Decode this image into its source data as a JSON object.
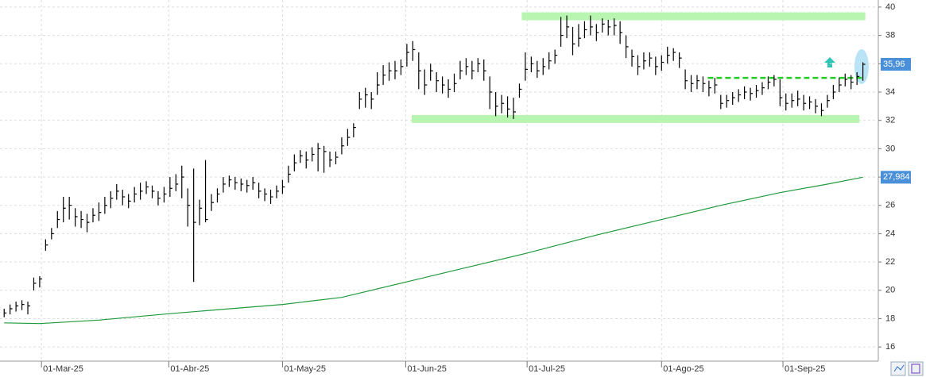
{
  "chart_data": {
    "type": "ohlc",
    "xlim": [
      -0.7,
      147.6
    ],
    "xticks": [
      {
        "value": 6.3,
        "label": "01-Mar-25"
      },
      {
        "value": 27.8,
        "label": "01-Abr-25"
      },
      {
        "value": 47,
        "label": "01-May-25"
      },
      {
        "value": 67.8,
        "label": "01-Jun-25"
      },
      {
        "value": 88.3,
        "label": "01-Jul-25"
      },
      {
        "value": 111,
        "label": "01-Ago-25"
      },
      {
        "value": 131.5,
        "label": "01-Sep-25"
      }
    ],
    "ylim": [
      15,
      40.5
    ],
    "yticks": [
      16,
      18,
      20,
      22,
      24,
      26,
      28,
      30,
      32,
      34,
      36,
      38,
      40
    ],
    "grid": true,
    "bars": {
      "color": "#000000",
      "high": [
        18.7,
        19,
        19.2,
        19.3,
        19.2,
        20.9,
        21,
        23.6,
        24.4,
        25.6,
        26.6,
        26.6,
        25.8,
        25.6,
        25.4,
        25.8,
        26.2,
        26.6,
        27,
        27.5,
        27.1,
        26.8,
        27.3,
        27.6,
        27.7,
        27.4,
        27,
        27.3,
        28,
        28.2,
        28.8,
        27.2,
        28.6,
        26.4,
        29.2,
        26.8,
        27.2,
        28,
        28.1,
        28,
        27.9,
        27.8,
        28,
        27.6,
        27.2,
        27.1,
        27.4,
        27.8,
        28.8,
        29.6,
        29.9,
        29.8,
        30.1,
        30.4,
        30.2,
        29.8,
        29.8,
        30.8,
        31.4,
        31.8,
        34,
        34.3,
        34,
        35.4,
        35.9,
        36.1,
        36.2,
        36.3,
        37.4,
        37.6,
        36.8,
        35.6,
        36,
        35.4,
        35.1,
        34.9,
        35.3,
        36.2,
        36.4,
        36.2,
        36.4,
        36.3,
        35.1,
        34,
        33.8,
        33.7,
        33.6,
        34.6,
        36.8,
        36.5,
        36.2,
        36.4,
        36.8,
        37,
        39.3,
        39.4,
        38.6,
        38.8,
        39,
        39.4,
        38.8,
        39.2,
        39.1,
        39.2,
        39,
        38,
        37,
        36.6,
        36.8,
        36.8,
        36.5,
        36.6,
        37.2,
        37.1,
        36.8,
        35.6,
        35.2,
        35.2,
        35.1,
        34.8,
        35,
        33.8,
        33.8,
        34,
        34.2,
        34.4,
        34.3,
        34.5,
        34.7,
        35.1,
        35.2,
        34.9,
        33.9,
        33.9,
        34.1,
        33.8,
        33.7,
        33.5,
        33.2,
        33.8,
        34.5,
        35,
        35.3,
        35.2,
        35.4,
        36.1
      ],
      "low": [
        18.1,
        18.3,
        18.5,
        18.6,
        18.3,
        20,
        20.2,
        22.8,
        23.6,
        24.4,
        24.8,
        25,
        24.5,
        24.4,
        24.1,
        24.8,
        24.9,
        25.4,
        25.8,
        26.4,
        26,
        25.8,
        26.2,
        26.4,
        26.8,
        26.5,
        26,
        26.2,
        26.6,
        27,
        26.5,
        24.5,
        20.6,
        24.6,
        24.8,
        25.6,
        26.2,
        26.9,
        27.3,
        27.1,
        27,
        26.9,
        27.1,
        26.5,
        26.3,
        26.1,
        26.5,
        26.8,
        27.6,
        28.4,
        29,
        28.6,
        29.1,
        28.4,
        28.3,
        28.7,
        28.9,
        29.6,
        30.2,
        30.8,
        32.8,
        32.9,
        32.8,
        33.8,
        34.5,
        34.8,
        34.9,
        35.2,
        35.8,
        36.2,
        34.2,
        33.8,
        34.8,
        34,
        33.9,
        33.6,
        34,
        34.9,
        35.2,
        34.9,
        35.4,
        34.8,
        32.8,
        32.3,
        32.5,
        32.2,
        32.1,
        33.6,
        34.8,
        35.4,
        35,
        35.2,
        35.6,
        36,
        37.2,
        37.8,
        36.6,
        37.2,
        37.8,
        38,
        37.6,
        38.2,
        38,
        38,
        37.4,
        36.4,
        35.8,
        35.2,
        35.6,
        35.8,
        35.2,
        35.5,
        36,
        36.2,
        35.7,
        34.2,
        34,
        34.2,
        34,
        33.7,
        33.9,
        32.8,
        32.9,
        33.1,
        33.3,
        33.5,
        33.4,
        33.6,
        33.8,
        34.2,
        34.4,
        33,
        32.7,
        32.9,
        33,
        32.7,
        32.8,
        32.5,
        32.3,
        32.9,
        33.5,
        34,
        34.4,
        34.2,
        34.5,
        34.8
      ],
      "close": [
        18.4,
        18.7,
        18.9,
        19,
        18.9,
        20.5,
        20.8,
        23.2,
        24,
        25,
        25.8,
        26,
        25.2,
        25,
        24.8,
        25.3,
        25.5,
        26,
        26.5,
        27,
        26.6,
        26.3,
        26.8,
        27,
        27.3,
        27,
        26.5,
        26.8,
        27.2,
        27.5,
        28,
        26,
        24.8,
        25.8,
        25,
        26.2,
        26.8,
        27.5,
        27.8,
        27.6,
        27.5,
        27.4,
        27.6,
        27,
        26.8,
        26.6,
        27,
        27.3,
        28.2,
        29,
        29.5,
        29.2,
        29.6,
        30,
        29.8,
        29.2,
        29.4,
        30.2,
        30.8,
        31.5,
        33.5,
        33.8,
        33.5,
        34.5,
        35.2,
        35.5,
        35.5,
        35.8,
        36.8,
        37,
        35.5,
        34.5,
        35.5,
        34.8,
        34.5,
        34.2,
        34.6,
        35.5,
        35.8,
        35.5,
        36,
        35.5,
        34,
        33,
        33.2,
        32.8,
        32.6,
        34.2,
        35.6,
        36,
        35.5,
        35.8,
        36.2,
        36.6,
        38,
        38.6,
        37.4,
        37.8,
        38.4,
        38.6,
        38.2,
        38.8,
        38.6,
        38.7,
        38.2,
        37.2,
        36.5,
        35.8,
        36.2,
        36.4,
        35.8,
        36.1,
        36.6,
        36.8,
        36.4,
        34.8,
        34.6,
        34.8,
        34.6,
        34.3,
        34.5,
        33.2,
        33.4,
        33.6,
        33.8,
        34,
        33.9,
        34.1,
        34.3,
        34.7,
        34.9,
        33.6,
        33.2,
        33.4,
        33.5,
        33.2,
        33.3,
        33,
        32.7,
        33.4,
        34,
        34.5,
        34.9,
        34.7,
        35.1,
        35.96
      ]
    },
    "lines": [
      {
        "color": "#1f9a3c",
        "x": [
          0,
          6,
          16,
          28,
          47,
          57,
          68,
          78,
          88,
          100,
          111,
          121,
          131,
          139,
          145
        ],
        "values": [
          17.7,
          17.65,
          17.9,
          18.35,
          19.0,
          19.5,
          20.6,
          21.6,
          22.6,
          23.9,
          25.0,
          26.0,
          26.9,
          27.5,
          27.984
        ]
      }
    ],
    "levels": [
      {
        "value": 39.35,
        "from": 87.4,
        "to": 145.4,
        "color": "#b8f5b0",
        "style": "band"
      },
      {
        "value": 32.1,
        "from": 68.8,
        "to": 144.4,
        "color": "#b8f5b0",
        "style": "band"
      },
      {
        "value": 35.0,
        "from": 118.8,
        "to": 145.4,
        "color": "#22cc22",
        "style": "dashed"
      }
    ],
    "price_tags": [
      {
        "value": 35.96,
        "label": "35,96",
        "color": "#4a90d9"
      },
      {
        "value": 27.984,
        "label": "27,984",
        "color": "#4a90d9"
      }
    ]
  }
}
